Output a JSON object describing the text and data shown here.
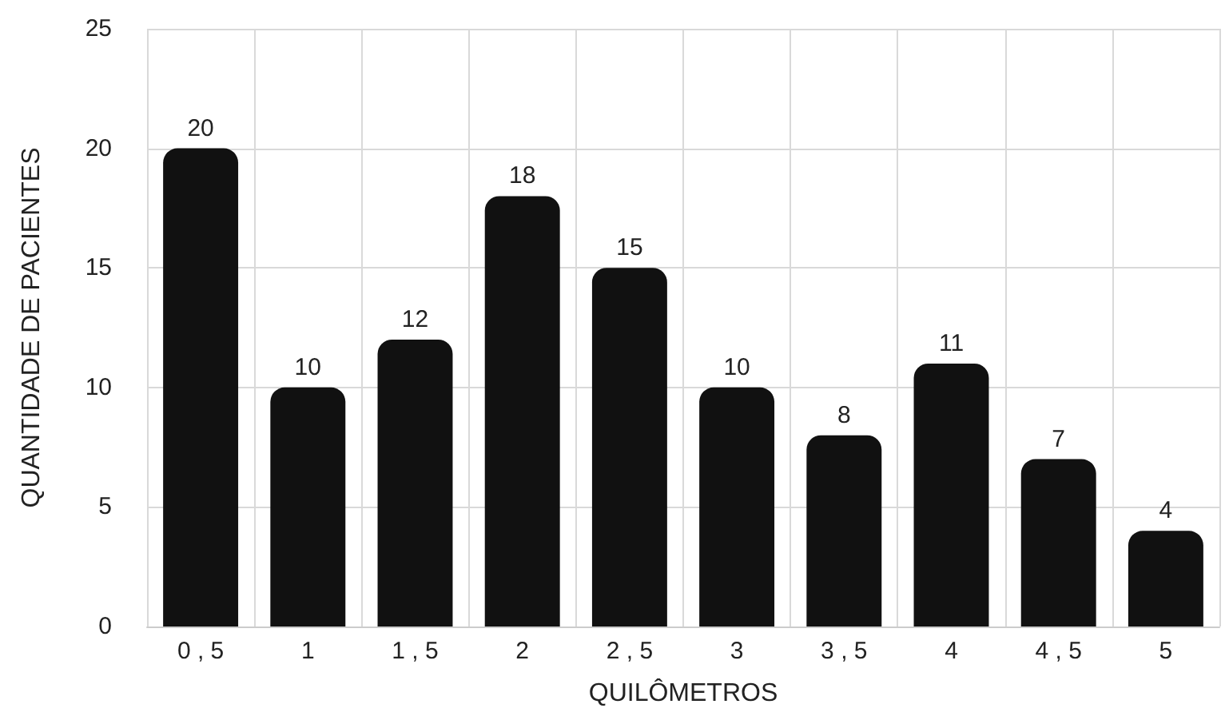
{
  "chart_data": {
    "type": "bar",
    "xlabel": "QUILÔMETROS",
    "ylabel": "QUANTIDADE DE PACIENTES",
    "categories": [
      "0 , 5",
      "1",
      "1 , 5",
      "2",
      "2 , 5",
      "3",
      "3 , 5",
      "4",
      "4 , 5",
      "5"
    ],
    "values": [
      20,
      10,
      12,
      18,
      15,
      10,
      8,
      11,
      7,
      4
    ],
    "color": "#111111",
    "ylim": [
      0,
      25
    ],
    "yticks": [
      0,
      5,
      10,
      15,
      20,
      25
    ],
    "grid": true,
    "data_labels": true
  }
}
